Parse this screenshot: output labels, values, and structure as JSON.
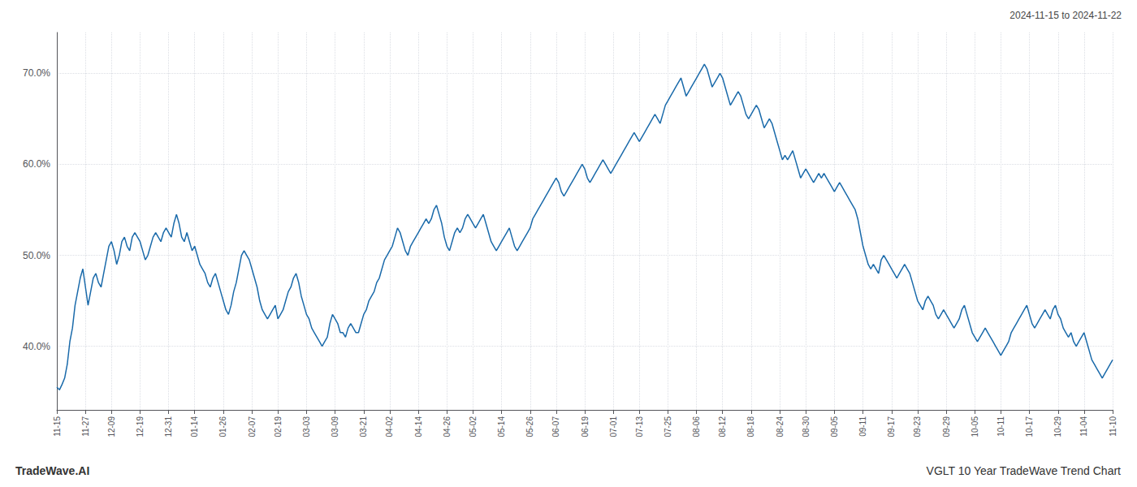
{
  "chart_data": {
    "type": "line",
    "title": "VGLT 10 Year TradeWave Trend Chart",
    "subtitle": "2024-11-15 to 2024-11-22",
    "annotations": [
      "TradeWave.AI"
    ],
    "color": "#1a6aaa",
    "grid": true,
    "ylim": [
      33.0,
      74.5
    ],
    "yticks": [
      {
        "value": 40.0,
        "label": "40.0%"
      },
      {
        "value": 50.0,
        "label": "50.0%"
      },
      {
        "value": 60.0,
        "label": "60.0%"
      },
      {
        "value": 70.0,
        "label": "70.0%"
      }
    ],
    "categories": [
      "11-15",
      null,
      null,
      null,
      null,
      null,
      null,
      null,
      null,
      null,
      null,
      "11-27",
      null,
      null,
      null,
      null,
      null,
      null,
      null,
      null,
      null,
      "12-09",
      null,
      null,
      null,
      null,
      null,
      null,
      null,
      null,
      null,
      null,
      "12-19",
      null,
      null,
      null,
      null,
      null,
      null,
      null,
      null,
      null,
      null,
      "12-31",
      null,
      null,
      null,
      null,
      null,
      null,
      null,
      null,
      null,
      "01-14",
      null,
      null,
      null,
      null,
      null,
      null,
      null,
      null,
      null,
      null,
      "01-26",
      null,
      null,
      null,
      null,
      null,
      null,
      null,
      null,
      null,
      null,
      "02-07",
      null,
      null,
      null,
      null,
      null,
      null,
      null,
      null,
      null,
      "02-19",
      null,
      null,
      null,
      null,
      null,
      null,
      null,
      null,
      null,
      null,
      "03-03",
      null,
      null,
      null,
      null,
      null,
      null,
      null,
      null,
      null,
      null,
      "03-09",
      null,
      null,
      null,
      null,
      null,
      null,
      null,
      null,
      null,
      null,
      "03-21",
      null,
      null,
      null,
      null,
      null,
      null,
      null,
      null,
      null,
      "04-02",
      null,
      null,
      null,
      null,
      null,
      null,
      null,
      null,
      null,
      null,
      "04-14",
      null,
      null,
      null,
      null,
      null,
      null,
      null,
      null,
      null,
      null,
      "04-26",
      null,
      null,
      null,
      null,
      null,
      null,
      null,
      null,
      null,
      "05-02",
      null,
      null,
      null,
      null,
      null,
      null,
      null,
      null,
      null,
      null,
      "05-14",
      null,
      null,
      null,
      null,
      null,
      null,
      null,
      null,
      null,
      null,
      "05-26",
      null,
      null,
      null,
      null,
      null,
      null,
      null,
      null,
      null,
      "06-07",
      null,
      null,
      null,
      null,
      null,
      null,
      null,
      null,
      null,
      null,
      "06-19",
      null,
      null,
      null,
      null,
      null,
      null,
      null,
      null,
      null,
      null,
      "07-01",
      null,
      null,
      null,
      null,
      null,
      null,
      null,
      null,
      null,
      "07-13",
      null,
      null,
      null,
      null,
      null,
      null,
      null,
      null,
      null,
      null,
      "07-25",
      null,
      null,
      null,
      null,
      null,
      null,
      null,
      null,
      null,
      null,
      "08-06",
      null,
      null,
      null,
      null,
      null,
      null,
      null,
      null,
      null,
      "08-12",
      null,
      null,
      null,
      null,
      null,
      null,
      null,
      null,
      null,
      null,
      "08-18",
      null,
      null,
      null,
      null,
      null,
      null,
      null,
      null,
      null,
      null,
      "08-24",
      null,
      null,
      null,
      null,
      null,
      null,
      null,
      null,
      null,
      "08-30",
      null,
      null,
      null,
      null,
      null,
      null,
      null,
      null,
      null,
      null,
      "09-05",
      null,
      null,
      null,
      null,
      null,
      null,
      null,
      null,
      null,
      null,
      "09-11",
      null,
      null,
      null,
      null,
      null,
      null,
      null,
      null,
      null,
      null,
      "09-17",
      null,
      null,
      null,
      null,
      null,
      null,
      null,
      null,
      null,
      "09-23",
      null,
      null,
      null,
      null,
      null,
      null,
      null,
      null,
      null,
      null,
      "09-29",
      null,
      null,
      null,
      null,
      null,
      null,
      null,
      null,
      null,
      null,
      "10-05",
      null,
      null,
      null,
      null,
      null,
      null,
      null,
      null,
      null,
      "10-11",
      null,
      null,
      null,
      null,
      null,
      null,
      null,
      null,
      null,
      null,
      "10-17",
      null,
      null,
      null,
      null,
      null,
      null,
      null,
      null,
      null,
      null,
      "10-29",
      null,
      null,
      null,
      null,
      null,
      null,
      null,
      null,
      null,
      "11-04",
      null,
      null,
      null,
      null,
      null,
      null,
      null,
      null,
      null,
      null,
      "11-10"
    ],
    "values": [
      35.5,
      35.2,
      35.8,
      36.5,
      38.0,
      40.5,
      42.0,
      44.5,
      46.0,
      47.5,
      48.5,
      46.5,
      44.5,
      46.0,
      47.5,
      48.0,
      47.0,
      46.5,
      48.0,
      49.5,
      51.0,
      51.5,
      50.5,
      49.0,
      50.0,
      51.5,
      52.0,
      51.0,
      50.5,
      52.0,
      52.5,
      52.0,
      51.5,
      50.5,
      49.5,
      50.0,
      51.0,
      52.0,
      52.5,
      52.0,
      51.5,
      52.5,
      53.0,
      52.5,
      52.0,
      53.5,
      54.5,
      53.5,
      52.0,
      51.5,
      52.5,
      51.5,
      50.5,
      51.0,
      50.0,
      49.0,
      48.5,
      48.0,
      47.0,
      46.5,
      47.5,
      48.0,
      47.0,
      46.0,
      45.0,
      44.0,
      43.5,
      44.5,
      46.0,
      47.0,
      48.5,
      50.0,
      50.5,
      50.0,
      49.5,
      48.5,
      47.5,
      46.5,
      45.0,
      44.0,
      43.5,
      43.0,
      43.5,
      44.0,
      44.5,
      43.0,
      43.5,
      44.0,
      45.0,
      46.0,
      46.5,
      47.5,
      48.0,
      47.0,
      45.5,
      44.5,
      43.5,
      43.0,
      42.0,
      41.5,
      41.0,
      40.5,
      40.0,
      40.5,
      41.0,
      42.5,
      43.5,
      43.0,
      42.5,
      41.5,
      41.5,
      41.0,
      42.0,
      42.5,
      42.0,
      41.5,
      41.5,
      42.5,
      43.5,
      44.0,
      45.0,
      45.5,
      46.0,
      47.0,
      47.5,
      48.5,
      49.5,
      50.0,
      50.5,
      51.0,
      52.0,
      53.0,
      52.5,
      51.5,
      50.5,
      50.0,
      51.0,
      51.5,
      52.0,
      52.5,
      53.0,
      53.5,
      54.0,
      53.5,
      54.0,
      55.0,
      55.5,
      54.5,
      53.5,
      52.0,
      51.0,
      50.5,
      51.5,
      52.5,
      53.0,
      52.5,
      53.0,
      54.0,
      54.5,
      54.0,
      53.5,
      53.0,
      53.5,
      54.0,
      54.5,
      53.5,
      52.5,
      51.5,
      51.0,
      50.5,
      51.0,
      51.5,
      52.0,
      52.5,
      53.0,
      52.0,
      51.0,
      50.5,
      51.0,
      51.5,
      52.0,
      52.5,
      53.0,
      54.0,
      54.5,
      55.0,
      55.5,
      56.0,
      56.5,
      57.0,
      57.5,
      58.0,
      58.5,
      58.0,
      57.0,
      56.5,
      57.0,
      57.5,
      58.0,
      58.5,
      59.0,
      59.5,
      60.0,
      59.5,
      58.5,
      58.0,
      58.5,
      59.0,
      59.5,
      60.0,
      60.5,
      60.0,
      59.5,
      59.0,
      59.5,
      60.0,
      60.5,
      61.0,
      61.5,
      62.0,
      62.5,
      63.0,
      63.5,
      63.0,
      62.5,
      63.0,
      63.5,
      64.0,
      64.5,
      65.0,
      65.5,
      65.0,
      64.5,
      65.5,
      66.5,
      67.0,
      67.5,
      68.0,
      68.5,
      69.0,
      69.5,
      68.5,
      67.5,
      68.0,
      68.5,
      69.0,
      69.5,
      70.0,
      70.5,
      71.0,
      70.5,
      69.5,
      68.5,
      69.0,
      69.5,
      70.0,
      69.5,
      68.5,
      67.5,
      66.5,
      67.0,
      67.5,
      68.0,
      67.5,
      66.5,
      65.5,
      65.0,
      65.5,
      66.0,
      66.5,
      66.0,
      65.0,
      64.0,
      64.5,
      65.0,
      64.5,
      63.5,
      62.5,
      61.5,
      60.5,
      61.0,
      60.5,
      61.0,
      61.5,
      60.5,
      59.5,
      58.5,
      59.0,
      59.5,
      59.0,
      58.5,
      58.0,
      58.5,
      59.0,
      58.5,
      59.0,
      58.5,
      58.0,
      57.5,
      57.0,
      57.5,
      58.0,
      57.5,
      57.0,
      56.5,
      56.0,
      55.5,
      55.0,
      54.0,
      52.5,
      51.0,
      50.0,
      49.0,
      48.5,
      49.0,
      48.5,
      48.0,
      49.5,
      50.0,
      49.5,
      49.0,
      48.5,
      48.0,
      47.5,
      48.0,
      48.5,
      49.0,
      48.5,
      48.0,
      47.0,
      46.0,
      45.0,
      44.5,
      44.0,
      45.0,
      45.5,
      45.0,
      44.5,
      43.5,
      43.0,
      43.5,
      44.0,
      43.5,
      43.0,
      42.5,
      42.0,
      42.5,
      43.0,
      44.0,
      44.5,
      43.5,
      42.5,
      41.5,
      41.0,
      40.5,
      41.0,
      41.5,
      42.0,
      41.5,
      41.0,
      40.5,
      40.0,
      39.5,
      39.0,
      39.5,
      40.0,
      40.5,
      41.5,
      42.0,
      42.5,
      43.0,
      43.5,
      44.0,
      44.5,
      43.5,
      42.5,
      42.0,
      42.5,
      43.0,
      43.5,
      44.0,
      43.5,
      43.0,
      44.0,
      44.5,
      43.5,
      43.0,
      42.0,
      41.5,
      41.0,
      41.5,
      40.5,
      40.0,
      40.5,
      41.0,
      41.5,
      40.5,
      39.5,
      38.5,
      38.0,
      37.5,
      37.0,
      36.5,
      37.0,
      37.5,
      38.0,
      38.5
    ]
  }
}
